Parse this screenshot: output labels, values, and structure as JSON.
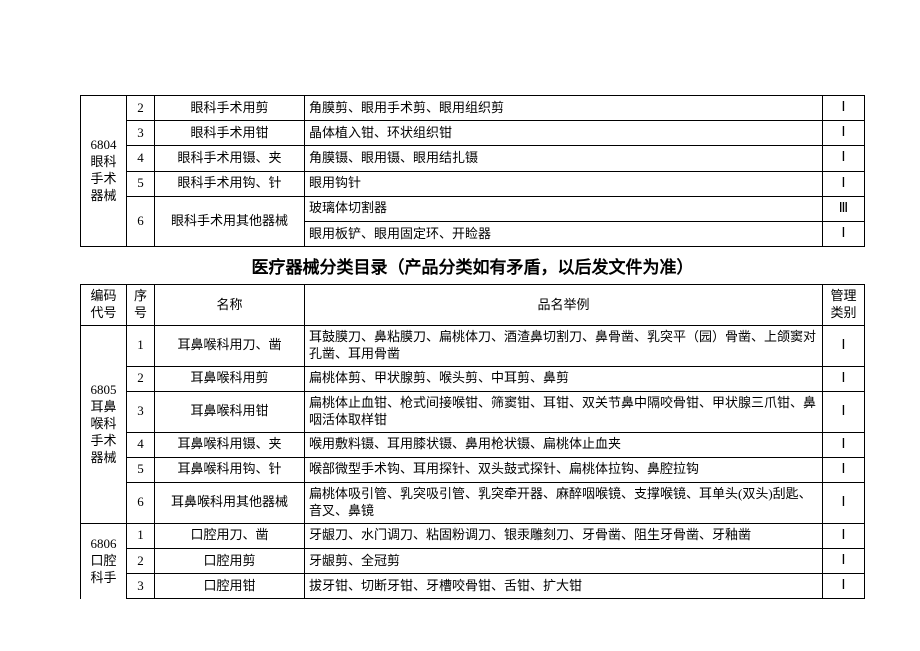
{
  "section_title": "医疗器械分类目录（产品分类如有矛盾，以后发文件为准）",
  "headers": {
    "code": "编码代号",
    "seq": "序号",
    "name": "名称",
    "example": "品名举例",
    "mgmt": "管理类别"
  },
  "group_6804": {
    "code": "6804眼科手术器械",
    "rows": [
      {
        "seq": "2",
        "name": "眼科手术用剪",
        "example": "角膜剪、眼用手术剪、眼用组织剪",
        "mgmt": "Ⅰ"
      },
      {
        "seq": "3",
        "name": "眼科手术用钳",
        "example": "晶体植入钳、环状组织钳",
        "mgmt": "Ⅰ"
      },
      {
        "seq": "4",
        "name": "眼科手术用镊、夹",
        "example": "角膜镊、眼用镊、眼用结扎镊",
        "mgmt": "Ⅰ"
      },
      {
        "seq": "5",
        "name": "眼科手术用钩、针",
        "example": "眼用钩针",
        "mgmt": "Ⅰ"
      }
    ],
    "row6": {
      "seq": "6",
      "name": "眼科手术用其他器械",
      "sub": [
        {
          "example": "玻璃体切割器",
          "mgmt": "Ⅲ"
        },
        {
          "example": "眼用板铲、眼用固定环、开睑器",
          "mgmt": "Ⅰ"
        }
      ]
    }
  },
  "group_6805": {
    "code": "6805耳鼻喉科手术器械",
    "rows": [
      {
        "seq": "1",
        "name": "耳鼻喉科用刀、凿",
        "example": "耳鼓膜刀、鼻粘膜刀、扁桃体刀、酒渣鼻切割刀、鼻骨凿、乳突平（园）骨凿、上颌窦对孔凿、耳用骨凿",
        "mgmt": "Ⅰ"
      },
      {
        "seq": "2",
        "name": "耳鼻喉科用剪",
        "example": "扁桃体剪、甲状腺剪、喉头剪、中耳剪、鼻剪",
        "mgmt": "Ⅰ"
      },
      {
        "seq": "3",
        "name": "耳鼻喉科用钳",
        "example": "扁桃体止血钳、枪式间接喉钳、筛窦钳、耳钳、双关节鼻中隔咬骨钳、甲状腺三爪钳、鼻咽活体取样钳",
        "mgmt": "Ⅰ"
      },
      {
        "seq": "4",
        "name": "耳鼻喉科用镊、夹",
        "example": "喉用敷料镊、耳用膝状镊、鼻用枪状镊、扁桃体止血夹",
        "mgmt": "Ⅰ"
      },
      {
        "seq": "5",
        "name": "耳鼻喉科用钩、针",
        "example": "喉部微型手术钩、耳用探针、双头鼓式探针、扁桃体拉钩、鼻腔拉钩",
        "mgmt": "Ⅰ"
      },
      {
        "seq": "6",
        "name": "耳鼻喉科用其他器械",
        "example": "扁桃体吸引管、乳突吸引管、乳突牵开器、麻醉咽喉镜、支撑喉镜、耳单头(双头)刮匙、音叉、鼻镜",
        "mgmt": "Ⅰ"
      }
    ]
  },
  "group_6806": {
    "code": "6806口腔科手",
    "rows": [
      {
        "seq": "1",
        "name": "口腔用刀、凿",
        "example": "牙龈刀、水门调刀、粘固粉调刀、银汞雕刻刀、牙骨凿、阻生牙骨凿、牙釉凿",
        "mgmt": "Ⅰ"
      },
      {
        "seq": "2",
        "name": "口腔用剪",
        "example": "牙龈剪、全冠剪",
        "mgmt": "Ⅰ"
      },
      {
        "seq": "3",
        "name": "口腔用钳",
        "example": "拔牙钳、切断牙钳、牙槽咬骨钳、舌钳、扩大钳",
        "mgmt": "Ⅰ"
      }
    ]
  }
}
